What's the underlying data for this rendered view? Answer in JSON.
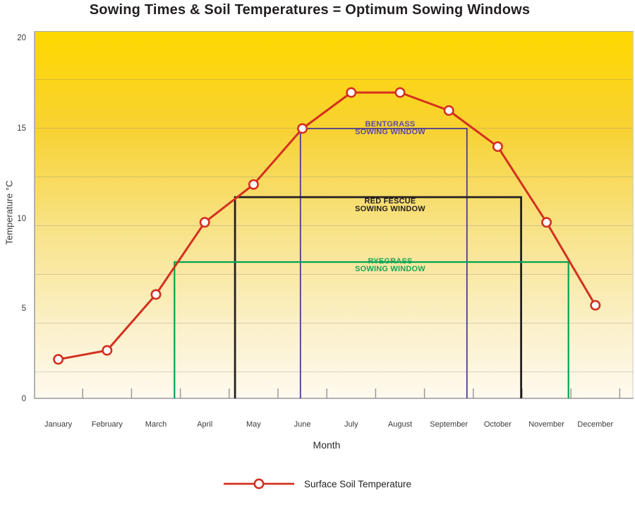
{
  "title": "Sowing Times & Soil Temperatures = Optimum Sowing Windows",
  "chart_data": {
    "type": "line",
    "title": "Sowing Times & Soil Temperatures = Optimum Sowing Windows",
    "xlabel": "Month",
    "ylabel": "Temperature °C",
    "ylim": [
      0,
      20
    ],
    "y_ticks": [
      0,
      5,
      10,
      15,
      20
    ],
    "grid": "horizontal-bands",
    "legend_position": "bottom-center",
    "categories": [
      "January",
      "February",
      "March",
      "April",
      "May",
      "June",
      "July",
      "August",
      "September",
      "October",
      "November",
      "December"
    ],
    "series": [
      {
        "name": "Surface Soil Temperature",
        "color": "#D4301F",
        "marker": "open-circle",
        "marker_fill": "#FFFFFF",
        "values": [
          2.2,
          2.7,
          5.8,
          9.8,
          11.9,
          15,
          17,
          17,
          16,
          14,
          9.8,
          5.2
        ]
      }
    ],
    "windows": [
      {
        "grass": "BENTGRASS",
        "label_line2": "SOWING WINDOW",
        "min_temp_c": 15,
        "x_start": 5.46,
        "x_end": 8.87,
        "line_color": "#4A3B8F",
        "text_color": "#5A4BA3",
        "stroke_width": 1.8,
        "label_y_offset": 0
      },
      {
        "grass": "RED FESCUE",
        "label_line2": "SOWING WINDOW",
        "min_temp_c": 11.2,
        "x_start": 4.12,
        "x_end": 9.98,
        "line_color": "#231F20",
        "text_color": "#231F20",
        "stroke_width": 2.8,
        "label_y_offset": 12
      },
      {
        "grass": "RYEGRASS",
        "label_line2": "SOWING WINDOW",
        "min_temp_c": 7.6,
        "x_start": 2.88,
        "x_end": 10.95,
        "line_color": "#00A551",
        "text_color": "#1CA45B",
        "stroke_width": 2.2,
        "label_y_offset": 5
      }
    ],
    "axis_color": "#B2B2B2",
    "tick_color": "#9A9A9A",
    "background_top_color": "#FFD800",
    "background_bottom_color": "#FEFAEF"
  },
  "legend": {
    "label": "Surface Soil Temperature"
  }
}
